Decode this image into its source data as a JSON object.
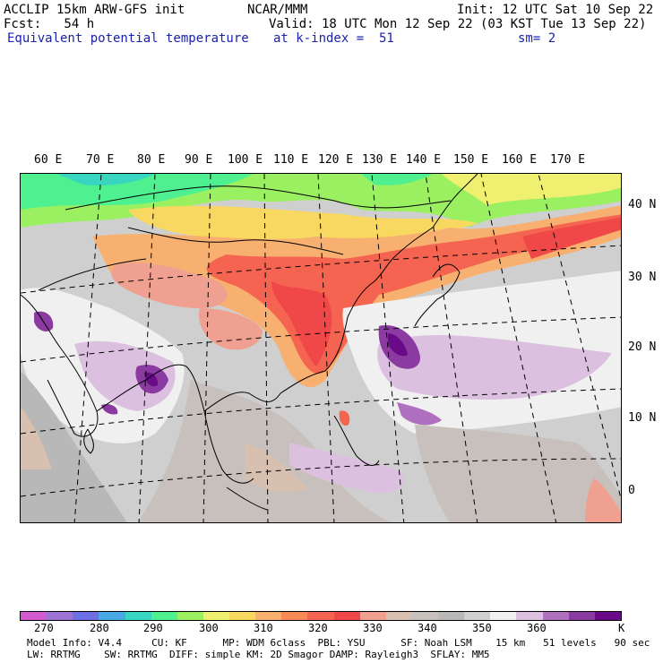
{
  "header": {
    "line1_left": "ACCLIP 15km ARW-GFS init",
    "line1_center": "NCAR/MMM",
    "line1_right": "Init: 12 UTC Sat 10 Sep 22",
    "line2_left": "Fcst:   54 h",
    "line2_right": "Valid: 18 UTC Mon 12 Sep 22 (03 KST Tue 13 Sep 22)",
    "line3_field": "Equivalent potential temperature",
    "line3_level": "at k-index =  51",
    "line3_smooth": "sm= 2"
  },
  "lon_labels": [
    "60 E",
    "70 E",
    "80 E",
    "90 E",
    "100 E",
    "110 E",
    "120 E",
    "130 E",
    "140 E",
    "150 E",
    "160 E",
    "170 E"
  ],
  "lat_labels": [
    "40 N",
    "30 N",
    "20 N",
    "10 N",
    "0"
  ],
  "colorbar": {
    "unit": "K",
    "tick_labels": [
      "270",
      "280",
      "290",
      "300",
      "310",
      "320",
      "330",
      "340",
      "350",
      "360"
    ],
    "colors": [
      "#d45ad0",
      "#9c72d4",
      "#6f6fe4",
      "#4aa8e6",
      "#38d6c0",
      "#4ef090",
      "#9af060",
      "#f0f070",
      "#f8d860",
      "#f8b070",
      "#f88a58",
      "#f46450",
      "#f04848",
      "#f0a090",
      "#d8c0b0",
      "#c8c0bc",
      "#b8b8b8",
      "#cfcfcf",
      "#f0f0f0",
      "#dcc0e0",
      "#b070c0",
      "#8a3aa0",
      "#6a0a88"
    ]
  },
  "footer": {
    "line1": "Model Info: V4.4     CU: KF      MP: WDM 6class  PBL: YSU      SF: Noah LSM    15 km   51 levels   90 sec",
    "line2": "LW: RRTMG    SW: RRTMG  DIFF: simple KM: 2D Smagor DAMP: Rayleigh3  SFLAY: MM5"
  }
}
